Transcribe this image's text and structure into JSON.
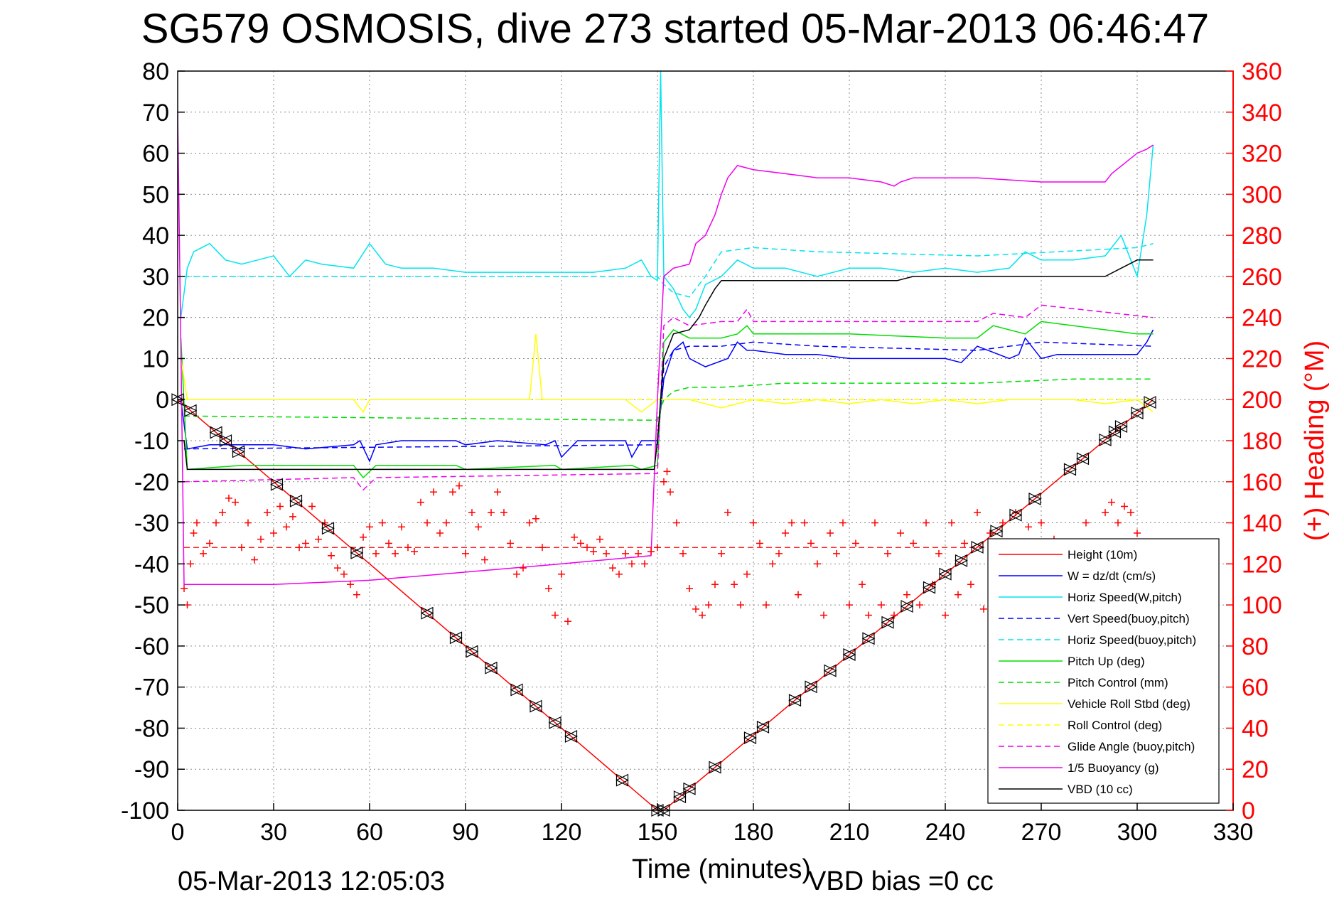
{
  "chart_data": {
    "type": "line",
    "title": "SG579 OSMOSIS, dive 273 started 05-Mar-2013 06:46:47",
    "xlabel": "Time (minutes)",
    "ylabel_right": "(+) Heading (°M)",
    "xlim": [
      0,
      330
    ],
    "ylim_left": [
      -100,
      80
    ],
    "ylim_right": [
      0,
      360
    ],
    "x_ticks": [
      "0",
      "30",
      "60",
      "90",
      "120",
      "150",
      "180",
      "210",
      "240",
      "270",
      "300",
      "330"
    ],
    "y_ticks_left": [
      "80",
      "70",
      "60",
      "50",
      "40",
      "30",
      "20",
      "10",
      "0",
      "-10",
      "-20",
      "-30",
      "-40",
      "-50",
      "-60",
      "-70",
      "-80",
      "-90",
      "-100"
    ],
    "y_ticks_right": [
      "360",
      "340",
      "320",
      "300",
      "280",
      "260",
      "240",
      "220",
      "200",
      "180",
      "160",
      "140",
      "120",
      "100",
      "80",
      "60",
      "40",
      "20",
      "0"
    ],
    "grid": true,
    "legend_position": "lower-right",
    "footer_left": "05-Mar-2013 12:05:03",
    "footer_right": "VBD bias =0 cc",
    "series": [
      {
        "name": "Height (10m)",
        "color": "#ff0000",
        "style": "solid",
        "axis": "left",
        "x": [
          0,
          150,
          152,
          305
        ],
        "y": [
          0,
          -100,
          -100,
          0
        ]
      },
      {
        "name": "W = dz/dt (cm/s)",
        "color": "#0000ff",
        "style": "solid",
        "axis": "left",
        "x": [
          1,
          3,
          10,
          20,
          30,
          40,
          55,
          57,
          60,
          62,
          70,
          87,
          90,
          100,
          115,
          118,
          120,
          125,
          130,
          140,
          142,
          145,
          148,
          150,
          152,
          155,
          158,
          160,
          165,
          172,
          175,
          178,
          180,
          190,
          200,
          210,
          220,
          240,
          245,
          250,
          260,
          263,
          265,
          270,
          275,
          280,
          290,
          300,
          303,
          305
        ],
        "y": [
          0,
          -12,
          -11,
          -11,
          -11,
          -12,
          -11,
          -10,
          -15,
          -11,
          -10,
          -10,
          -11,
          -10,
          -11,
          -10,
          -14,
          -10,
          -10,
          -10,
          -14,
          -10,
          -10,
          -10,
          5,
          12,
          14,
          10,
          8,
          10,
          14,
          12,
          12,
          11,
          11,
          10,
          10,
          10,
          9,
          13,
          10,
          11,
          15,
          10,
          11,
          11,
          11,
          11,
          14,
          17
        ]
      },
      {
        "name": "Horiz Speed(W,pitch)",
        "color": "#00e5ee",
        "style": "solid",
        "axis": "left",
        "x": [
          1,
          3,
          5,
          10,
          15,
          20,
          25,
          30,
          35,
          40,
          45,
          55,
          60,
          65,
          70,
          80,
          90,
          100,
          110,
          120,
          130,
          140,
          145,
          148,
          150,
          151,
          152,
          155,
          158,
          160,
          162,
          165,
          170,
          175,
          180,
          190,
          200,
          210,
          220,
          230,
          240,
          250,
          260,
          265,
          270,
          280,
          290,
          295,
          300,
          303,
          305
        ],
        "y": [
          20,
          32,
          36,
          38,
          34,
          33,
          34,
          35,
          30,
          34,
          33,
          32,
          38,
          33,
          32,
          32,
          31,
          31,
          31,
          31,
          31,
          32,
          34,
          30,
          29,
          80,
          30,
          27,
          22,
          20,
          22,
          28,
          30,
          34,
          32,
          32,
          30,
          32,
          32,
          31,
          32,
          31,
          32,
          36,
          34,
          34,
          35,
          40,
          30,
          45,
          62
        ]
      },
      {
        "name": "Vert Speed(buoy,pitch)",
        "color": "#0000ff",
        "style": "dashed",
        "axis": "left",
        "x": [
          2,
          150,
          152,
          155,
          160,
          170,
          180,
          200,
          250,
          270,
          305
        ],
        "y": [
          -12,
          -11,
          8,
          12,
          13,
          13,
          14,
          13,
          12,
          14,
          13
        ]
      },
      {
        "name": "Horiz Speed(buoy,pitch)",
        "color": "#00e5ee",
        "style": "dashed",
        "axis": "left",
        "x": [
          2,
          150,
          152,
          155,
          160,
          165,
          170,
          180,
          200,
          250,
          300,
          305
        ],
        "y": [
          30,
          30,
          28,
          26,
          25,
          30,
          36,
          37,
          36,
          35,
          37,
          38
        ]
      },
      {
        "name": "Pitch Up (deg)",
        "color": "#00dd00",
        "style": "solid",
        "axis": "left",
        "x": [
          1,
          3,
          20,
          55,
          58,
          62,
          87,
          90,
          118,
          120,
          142,
          145,
          150,
          152,
          155,
          160,
          170,
          175,
          178,
          180,
          210,
          240,
          250,
          255,
          265,
          270,
          300,
          305
        ],
        "y": [
          15,
          -17,
          -16,
          -16,
          -19,
          -16,
          -16,
          -17,
          -16,
          -17,
          -16,
          -17,
          -16,
          14,
          17,
          15,
          15,
          16,
          18,
          16,
          16,
          15,
          15,
          18,
          16,
          19,
          16,
          16
        ]
      },
      {
        "name": "Pitch Control (mm)",
        "color": "#00dd00",
        "style": "dashed",
        "axis": "left",
        "x": [
          2,
          145,
          150,
          152,
          155,
          160,
          170,
          190,
          250,
          280,
          305
        ],
        "y": [
          -4,
          -5,
          -5,
          0,
          2,
          3,
          3,
          4,
          4,
          5,
          5
        ]
      },
      {
        "name": "Vehicle Roll Stbd (deg)",
        "color": "#ffff00",
        "style": "solid",
        "axis": "left",
        "x": [
          1,
          3,
          10,
          20,
          30,
          40,
          55,
          58,
          60,
          70,
          90,
          100,
          110,
          112,
          114,
          120,
          130,
          140,
          145,
          150,
          152,
          155,
          160,
          170,
          180,
          190,
          200,
          210,
          220,
          230,
          240,
          250,
          260,
          270,
          280,
          290,
          300,
          305
        ],
        "y": [
          10,
          0,
          0,
          0,
          0,
          0,
          0,
          -3,
          0,
          0,
          0,
          0,
          0,
          16,
          0,
          0,
          0,
          0,
          -3,
          0,
          0,
          0,
          0,
          -2,
          0,
          -1,
          0,
          -1,
          0,
          -1,
          0,
          -1,
          0,
          0,
          0,
          -1,
          0,
          -3
        ]
      },
      {
        "name": "Roll Control (deg)",
        "color": "#ffff00",
        "style": "dashed",
        "axis": "left",
        "x": [
          2,
          150,
          152,
          305
        ],
        "y": [
          0,
          0,
          0,
          0
        ]
      },
      {
        "name": "Glide Angle (buoy,pitch)",
        "color": "#ee00ee",
        "style": "dashed",
        "axis": "left",
        "x": [
          2,
          55,
          58,
          62,
          150,
          152,
          155,
          160,
          170,
          175,
          178,
          180,
          250,
          255,
          265,
          270,
          305
        ],
        "y": [
          -20,
          -19,
          -22,
          -19,
          -18,
          18,
          20,
          18,
          19,
          19,
          22,
          19,
          19,
          21,
          20,
          23,
          20
        ]
      },
      {
        "name": "1/5 Buoyancy (g)",
        "color": "#ee00ee",
        "style": "solid",
        "axis": "left",
        "x": [
          0,
          2,
          30,
          60,
          90,
          120,
          148,
          150,
          152,
          155,
          160,
          162,
          165,
          168,
          170,
          172,
          175,
          180,
          190,
          200,
          210,
          220,
          224,
          226,
          230,
          240,
          250,
          270,
          290,
          292,
          300,
          303,
          305
        ],
        "y": [
          70,
          -45,
          -45,
          -44,
          -42,
          -40,
          -38,
          0,
          30,
          32,
          33,
          38,
          40,
          45,
          50,
          54,
          57,
          56,
          55,
          54,
          54,
          53,
          52,
          53,
          54,
          54,
          54,
          53,
          53,
          55,
          60,
          61,
          62
        ]
      },
      {
        "name": "VBD (10 cc)",
        "color": "#000000",
        "style": "solid",
        "axis": "left",
        "x": [
          2,
          3,
          149,
          150,
          152,
          155,
          160,
          163,
          165,
          168,
          170,
          180,
          200,
          220,
          225,
          230,
          250,
          270,
          290,
          295,
          300,
          305
        ],
        "y": [
          -10,
          -17,
          -17,
          -10,
          10,
          16,
          17,
          20,
          23,
          27,
          29,
          29,
          29,
          29,
          29,
          30,
          30,
          30,
          30,
          32,
          34,
          34
        ]
      }
    ],
    "heading_series": {
      "name": "(+) Heading",
      "color": "#ff0000",
      "marker": "+",
      "axis": "right",
      "mean_heading": 128,
      "x": [
        2,
        3,
        4,
        5,
        6,
        8,
        10,
        12,
        14,
        16,
        18,
        20,
        22,
        24,
        26,
        28,
        30,
        32,
        34,
        36,
        38,
        40,
        42,
        44,
        46,
        48,
        50,
        52,
        54,
        56,
        58,
        60,
        62,
        64,
        66,
        68,
        70,
        72,
        74,
        76,
        78,
        80,
        82,
        84,
        86,
        88,
        90,
        92,
        94,
        96,
        98,
        100,
        102,
        104,
        106,
        108,
        110,
        112,
        114,
        116,
        118,
        120,
        122,
        124,
        126,
        128,
        130,
        132,
        134,
        136,
        138,
        140,
        142,
        144,
        146,
        148,
        150,
        152,
        153,
        154,
        156,
        158,
        160,
        162,
        164,
        166,
        168,
        170,
        172,
        174,
        176,
        178,
        180,
        182,
        184,
        186,
        188,
        190,
        192,
        194,
        196,
        198,
        200,
        202,
        204,
        206,
        208,
        210,
        212,
        214,
        216,
        218,
        220,
        222,
        224,
        226,
        228,
        230,
        232,
        234,
        236,
        238,
        240,
        242,
        244,
        246,
        248,
        250,
        252,
        254,
        256,
        258,
        260,
        262,
        264,
        266,
        268,
        270,
        272,
        274,
        276,
        278,
        280,
        282,
        284,
        286,
        288,
        290,
        292,
        294,
        296,
        298,
        300
      ],
      "y": [
        108,
        100,
        120,
        135,
        140,
        125,
        130,
        140,
        145,
        152,
        150,
        128,
        140,
        122,
        132,
        145,
        135,
        148,
        138,
        143,
        128,
        130,
        148,
        132,
        140,
        124,
        118,
        115,
        110,
        105,
        133,
        138,
        125,
        140,
        130,
        125,
        138,
        128,
        126,
        150,
        140,
        155,
        135,
        140,
        155,
        158,
        125,
        145,
        138,
        122,
        145,
        155,
        145,
        130,
        115,
        118,
        140,
        142,
        128,
        108,
        95,
        115,
        92,
        133,
        130,
        128,
        126,
        132,
        125,
        118,
        115,
        125,
        120,
        125,
        120,
        126,
        128,
        160,
        165,
        155,
        140,
        125,
        108,
        98,
        95,
        100,
        110,
        125,
        145,
        110,
        100,
        115,
        140,
        130,
        100,
        120,
        125,
        135,
        140,
        105,
        140,
        130,
        120,
        95,
        135,
        125,
        140,
        100,
        130,
        110,
        95,
        140,
        100,
        125,
        95,
        135,
        105,
        130,
        100,
        140,
        110,
        125,
        95,
        140,
        105,
        130,
        110,
        145,
        98,
        135,
        115,
        140,
        105,
        145,
        112,
        138,
        120,
        140,
        118,
        132,
        130,
        110,
        128,
        120,
        140,
        115,
        130,
        145,
        150,
        140,
        148,
        145,
        135
      ]
    },
    "depth_markers": {
      "marker": "triangle-square",
      "color": "#000000",
      "x": [
        0,
        4,
        12,
        15,
        19,
        31,
        37,
        47,
        56,
        78,
        87,
        92,
        98,
        106,
        112,
        118,
        123,
        139,
        150,
        152,
        157,
        160,
        168,
        179,
        183,
        193,
        198,
        204,
        210,
        216,
        222,
        228,
        235,
        240,
        245,
        250,
        256,
        262,
        268,
        279,
        283,
        290,
        293,
        295,
        300,
        304
      ]
    }
  }
}
